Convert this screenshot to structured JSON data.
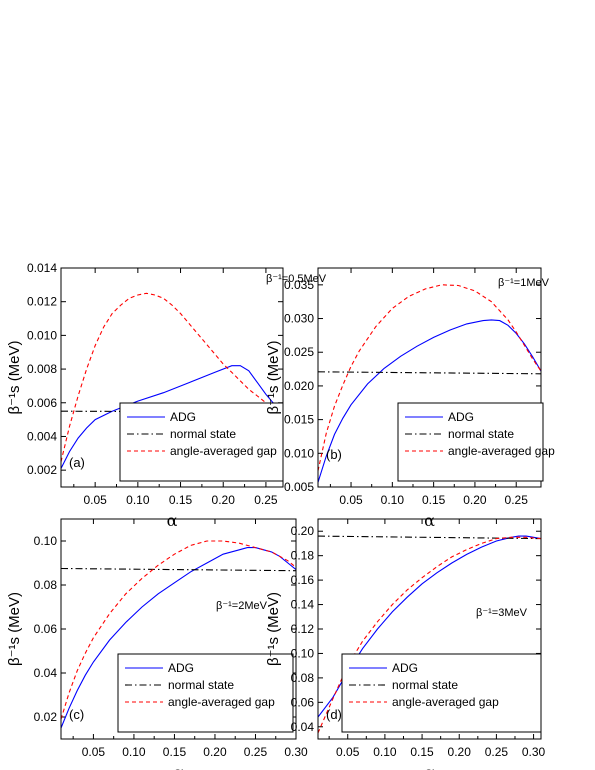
{
  "chart_data": [
    {
      "type": "line",
      "panel": "(a)",
      "param": "β⁻¹=0.5MeV",
      "xlabel": "α",
      "ylabel": "β⁻¹s (MeV)",
      "xlim": [
        0.01,
        0.27
      ],
      "ylim": [
        0.001,
        0.014
      ],
      "xticks": [
        "0.05",
        "0.10",
        "0.15",
        "0.20",
        "0.25"
      ],
      "xtick_values": [
        0.05,
        0.1,
        0.15,
        0.2,
        0.25
      ],
      "yticks": [
        "0.002",
        "0.004",
        "0.006",
        "0.008",
        "0.010",
        "0.012",
        "0.014"
      ],
      "ytick_values": [
        0.002,
        0.004,
        0.006,
        0.008,
        0.01,
        0.012,
        0.014
      ],
      "legend": {
        "placement": "bottom-right",
        "entries": [
          "ADG",
          "normal state",
          "angle-averaged gap"
        ]
      },
      "series": [
        {
          "name": "ADG",
          "color": "#0000ff",
          "dash": "solid",
          "x": [
            0.01,
            0.02,
            0.03,
            0.04,
            0.05,
            0.07,
            0.1,
            0.13,
            0.16,
            0.19,
            0.21,
            0.215,
            0.22,
            0.23,
            0.24,
            0.25,
            0.26,
            0.27
          ],
          "y": [
            0.0021,
            0.0031,
            0.0039,
            0.0045,
            0.005,
            0.0055,
            0.0061,
            0.0066,
            0.0072,
            0.0078,
            0.0082,
            0.0082,
            0.0082,
            0.0079,
            0.0072,
            0.0065,
            0.0059,
            0.0054
          ]
        },
        {
          "name": "normal state",
          "color": "#000000",
          "dash": "dashdot",
          "x": [
            0.01,
            0.27
          ],
          "y": [
            0.0055,
            0.00545
          ]
        },
        {
          "name": "angle-averaged gap",
          "color": "#ff0000",
          "dash": "dashed",
          "x": [
            0.01,
            0.02,
            0.03,
            0.04,
            0.05,
            0.06,
            0.07,
            0.08,
            0.09,
            0.1,
            0.11,
            0.12,
            0.13,
            0.14,
            0.15,
            0.16,
            0.17,
            0.18,
            0.19,
            0.2,
            0.21,
            0.22,
            0.23,
            0.24,
            0.25,
            0.26,
            0.27
          ],
          "y": [
            0.0025,
            0.0046,
            0.0064,
            0.008,
            0.0094,
            0.0105,
            0.0113,
            0.0118,
            0.0122,
            0.0124,
            0.0125,
            0.0124,
            0.0122,
            0.0118,
            0.0113,
            0.0107,
            0.0101,
            0.0095,
            0.0089,
            0.0083,
            0.0078,
            0.0073,
            0.0068,
            0.0064,
            0.006,
            0.0056,
            0.0054
          ]
        }
      ]
    },
    {
      "type": "line",
      "panel": "(b)",
      "param": "β⁻¹=1MeV",
      "xlabel": "α",
      "ylabel": "β⁻¹s (MeV)",
      "xlim": [
        0.01,
        0.28
      ],
      "ylim": [
        0.005,
        0.0375
      ],
      "xticks": [
        "0.05",
        "0.10",
        "0.15",
        "0.20",
        "0.25"
      ],
      "xtick_values": [
        0.05,
        0.1,
        0.15,
        0.2,
        0.25
      ],
      "yticks": [
        "0.005",
        "0.010",
        "0.015",
        "0.020",
        "0.025",
        "0.030",
        "0.035"
      ],
      "ytick_values": [
        0.005,
        0.01,
        0.015,
        0.02,
        0.025,
        0.03,
        0.035
      ],
      "legend": {
        "placement": "bottom-right",
        "entries": [
          "ADG",
          "normal state",
          "angle-averaged gap"
        ]
      },
      "series": [
        {
          "name": "ADG",
          "color": "#0000ff",
          "dash": "solid",
          "x": [
            0.01,
            0.02,
            0.03,
            0.04,
            0.05,
            0.07,
            0.09,
            0.11,
            0.13,
            0.15,
            0.17,
            0.19,
            0.21,
            0.22,
            0.23,
            0.24,
            0.25,
            0.26,
            0.27,
            0.28
          ],
          "y": [
            0.0057,
            0.0096,
            0.0128,
            0.0152,
            0.0172,
            0.0203,
            0.0226,
            0.0244,
            0.0259,
            0.0272,
            0.0283,
            0.0292,
            0.0297,
            0.0298,
            0.0297,
            0.029,
            0.0278,
            0.0262,
            0.0243,
            0.0222
          ]
        },
        {
          "name": "normal state",
          "color": "#000000",
          "dash": "dashdot",
          "x": [
            0.01,
            0.28
          ],
          "y": [
            0.0221,
            0.0218
          ]
        },
        {
          "name": "angle-averaged gap",
          "color": "#ff0000",
          "dash": "dashed",
          "x": [
            0.01,
            0.02,
            0.03,
            0.04,
            0.05,
            0.06,
            0.08,
            0.1,
            0.12,
            0.14,
            0.16,
            0.18,
            0.2,
            0.22,
            0.24,
            0.25,
            0.26,
            0.27,
            0.28
          ],
          "y": [
            0.0074,
            0.013,
            0.017,
            0.0201,
            0.0229,
            0.0252,
            0.0288,
            0.0315,
            0.0333,
            0.0344,
            0.035,
            0.0349,
            0.0341,
            0.0325,
            0.0298,
            0.028,
            0.026,
            0.024,
            0.0222
          ]
        }
      ]
    },
    {
      "type": "line",
      "panel": "(c)",
      "param": "β⁻¹=2MeV",
      "xlabel": "α",
      "ylabel": "β⁻¹s (MeV)",
      "xlim": [
        0.01,
        0.3
      ],
      "ylim": [
        0.01,
        0.11
      ],
      "xticks": [
        "0.05",
        "0.10",
        "0.15",
        "0.20",
        "0.25",
        "0.30"
      ],
      "xtick_values": [
        0.05,
        0.1,
        0.15,
        0.2,
        0.25,
        0.3
      ],
      "yticks": [
        "0.02",
        "0.04",
        "0.06",
        "0.08",
        "0.10"
      ],
      "ytick_values": [
        0.02,
        0.04,
        0.06,
        0.08,
        0.1
      ],
      "legend": {
        "placement": "bottom-right",
        "entries": [
          "ADG",
          "normal state",
          "angle-averaged gap"
        ]
      },
      "series": [
        {
          "name": "ADG",
          "color": "#0000ff",
          "dash": "solid",
          "x": [
            0.01,
            0.02,
            0.03,
            0.04,
            0.05,
            0.07,
            0.09,
            0.11,
            0.13,
            0.15,
            0.17,
            0.19,
            0.21,
            0.23,
            0.24,
            0.25,
            0.26,
            0.27,
            0.28,
            0.29,
            0.3
          ],
          "y": [
            0.015,
            0.024,
            0.032,
            0.039,
            0.045,
            0.055,
            0.063,
            0.07,
            0.076,
            0.081,
            0.086,
            0.09,
            0.094,
            0.096,
            0.097,
            0.097,
            0.096,
            0.095,
            0.093,
            0.09,
            0.087
          ]
        },
        {
          "name": "normal state",
          "color": "#000000",
          "dash": "dashdot",
          "x": [
            0.01,
            0.3
          ],
          "y": [
            0.0875,
            0.0865
          ]
        },
        {
          "name": "angle-averaged gap",
          "color": "#ff0000",
          "dash": "dashed",
          "x": [
            0.01,
            0.02,
            0.03,
            0.04,
            0.05,
            0.07,
            0.09,
            0.11,
            0.13,
            0.15,
            0.17,
            0.19,
            0.21,
            0.23,
            0.25,
            0.27,
            0.29,
            0.3
          ],
          "y": [
            0.019,
            0.031,
            0.041,
            0.049,
            0.056,
            0.067,
            0.076,
            0.083,
            0.089,
            0.094,
            0.098,
            0.1,
            0.1,
            0.099,
            0.097,
            0.095,
            0.091,
            0.088
          ]
        }
      ]
    },
    {
      "type": "line",
      "panel": "(d)",
      "param": "β⁻¹=3MeV",
      "xlabel": "α",
      "ylabel": "β⁻¹s (MeV)",
      "xlim": [
        0.01,
        0.31
      ],
      "ylim": [
        0.03,
        0.21
      ],
      "xticks": [
        "0.05",
        "0.10",
        "0.15",
        "0.20",
        "0.25",
        "0.30"
      ],
      "xtick_values": [
        0.05,
        0.1,
        0.15,
        0.2,
        0.25,
        0.3
      ],
      "yticks": [
        "0.04",
        "0.06",
        "0.08",
        "0.10",
        "0.12",
        "0.14",
        "0.16",
        "0.18",
        "0.20"
      ],
      "ytick_values": [
        0.04,
        0.06,
        0.08,
        0.1,
        0.12,
        0.14,
        0.16,
        0.18,
        0.2
      ],
      "legend": {
        "placement": "bottom-right",
        "entries": [
          "ADG",
          "normal state",
          "angle-averaged gap"
        ]
      },
      "series": [
        {
          "name": "ADG",
          "color": "#0000ff",
          "dash": "solid",
          "x": [
            0.01,
            0.03,
            0.05,
            0.07,
            0.09,
            0.11,
            0.13,
            0.15,
            0.17,
            0.19,
            0.21,
            0.23,
            0.25,
            0.27,
            0.28,
            0.29,
            0.3,
            0.31
          ],
          "y": [
            0.048,
            0.064,
            0.085,
            0.104,
            0.12,
            0.134,
            0.146,
            0.157,
            0.166,
            0.174,
            0.181,
            0.187,
            0.192,
            0.195,
            0.196,
            0.196,
            0.195,
            0.194
          ]
        },
        {
          "name": "normal state",
          "color": "#000000",
          "dash": "dashdot",
          "x": [
            0.01,
            0.31
          ],
          "y": [
            0.196,
            0.194
          ]
        },
        {
          "name": "angle-averaged gap",
          "color": "#ff0000",
          "dash": "dashed",
          "x": [
            0.01,
            0.03,
            0.05,
            0.07,
            0.09,
            0.11,
            0.13,
            0.15,
            0.17,
            0.19,
            0.21,
            0.23,
            0.25,
            0.27,
            0.29,
            0.31
          ],
          "y": [
            0.035,
            0.063,
            0.09,
            0.11,
            0.126,
            0.14,
            0.152,
            0.162,
            0.171,
            0.179,
            0.185,
            0.19,
            0.194,
            0.195,
            0.195,
            0.194
          ]
        }
      ]
    }
  ]
}
